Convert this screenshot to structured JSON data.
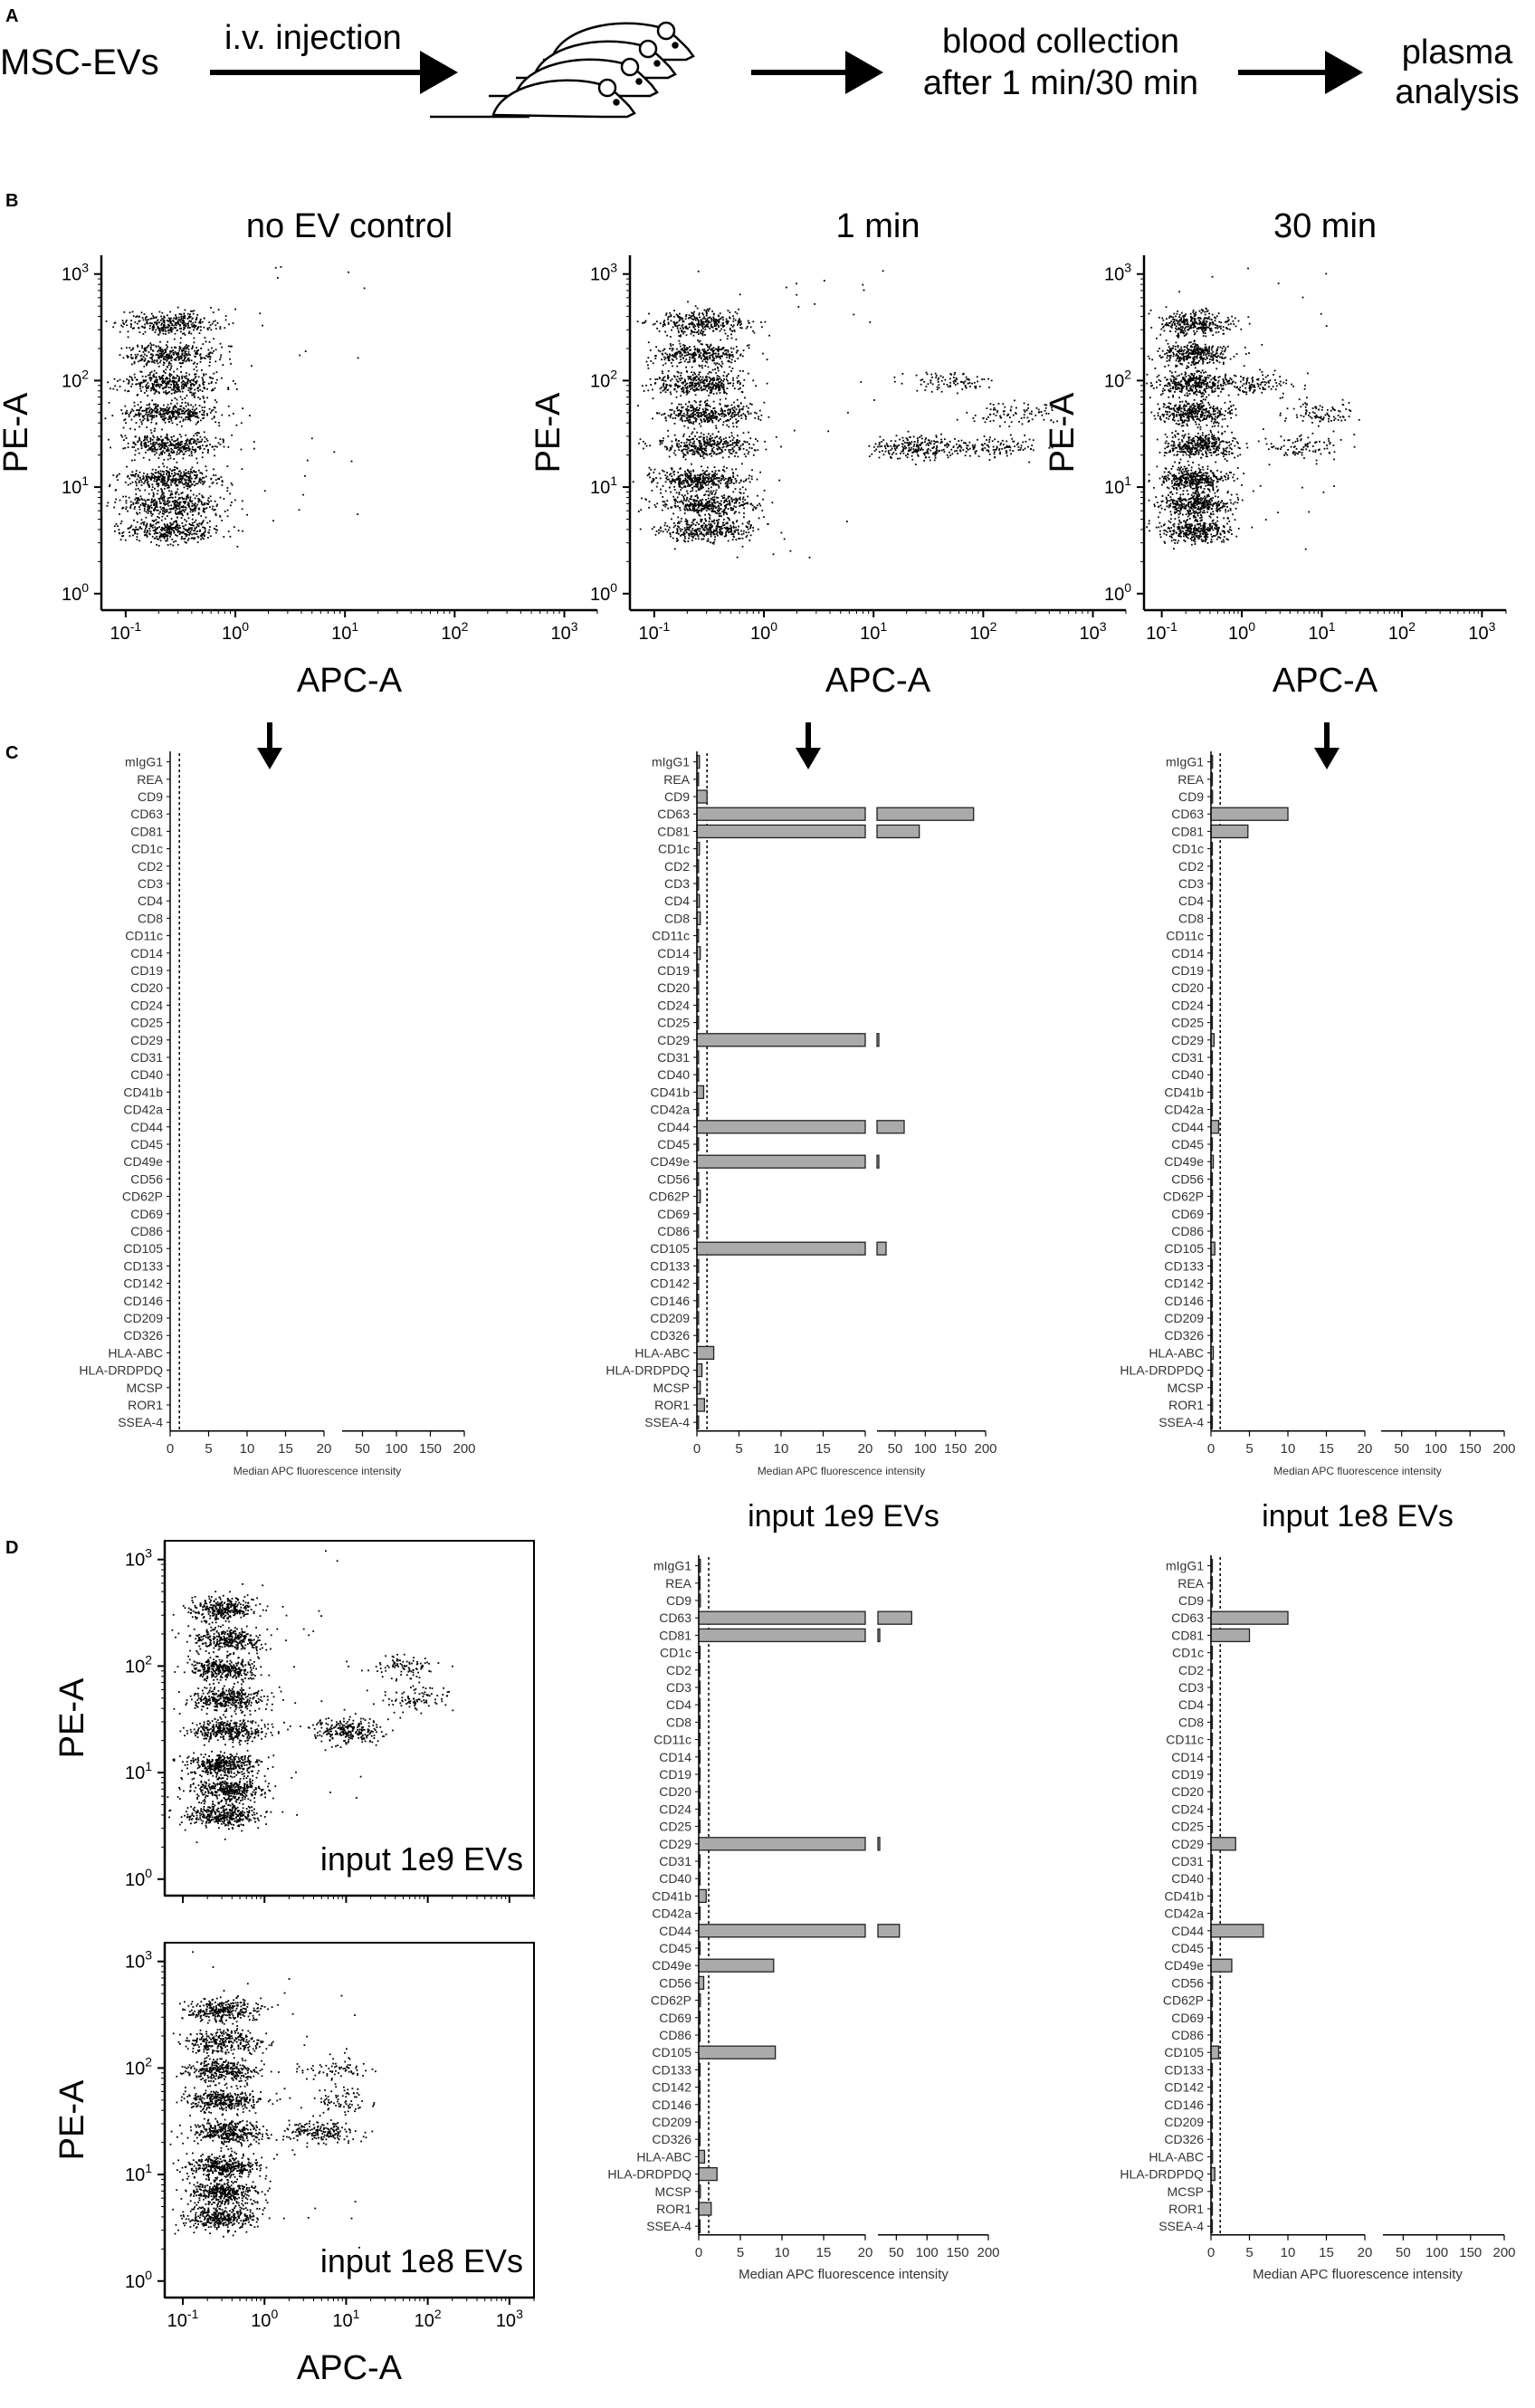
{
  "panel_labels": [
    "A",
    "B",
    "C",
    "D"
  ],
  "workflow": {
    "start": "MSC-EVs",
    "step1": "i.v. injection",
    "step2_line1": "blood collection",
    "step2_line2": "after 1 min/30 min",
    "step3_line1": "plasma",
    "step3_line2": "analysis"
  },
  "colors": {
    "bar_fill": "#aaaaaa",
    "bar_stroke": "#222222",
    "dot": "#000000"
  },
  "chart_data": [
    {
      "id": "scatter_no_ev",
      "type": "scatter",
      "title": "no EV control",
      "xlabel": "APC-A",
      "ylabel": "PE-A",
      "x_scale": "log",
      "y_scale": "log",
      "xlim": [
        0.06,
        2000
      ],
      "ylim": [
        0.7,
        1500
      ],
      "x_ticks": [
        "10-1",
        "100",
        "101",
        "102",
        "103"
      ],
      "y_ticks": [
        "100",
        "101",
        "102",
        "103"
      ],
      "populations": [
        {
          "x": 0.25,
          "y": 350,
          "n": 320
        },
        {
          "x": 0.25,
          "y": 180,
          "n": 330
        },
        {
          "x": 0.25,
          "y": 95,
          "n": 360
        },
        {
          "x": 0.25,
          "y": 50,
          "n": 360
        },
        {
          "x": 0.25,
          "y": 25,
          "n": 360
        },
        {
          "x": 0.25,
          "y": 12,
          "n": 380
        },
        {
          "x": 0.25,
          "y": 7,
          "n": 380
        },
        {
          "x": 0.25,
          "y": 4,
          "n": 360
        }
      ]
    },
    {
      "id": "scatter_1min",
      "type": "scatter",
      "title": "1 min",
      "xlabel": "APC-A",
      "ylabel": "PE-A",
      "x_scale": "log",
      "y_scale": "log",
      "xlim": [
        0.06,
        2000
      ],
      "ylim": [
        0.7,
        1500
      ],
      "x_ticks": [
        "10-1",
        "100",
        "101",
        "102",
        "103"
      ],
      "y_ticks": [
        "100",
        "101",
        "102",
        "103"
      ],
      "populations": [
        {
          "x": 0.25,
          "y": 350,
          "n": 320
        },
        {
          "x": 0.25,
          "y": 180,
          "n": 330
        },
        {
          "x": 0.25,
          "y": 95,
          "n": 360
        },
        {
          "x": 0.3,
          "y": 50,
          "n": 360
        },
        {
          "x": 0.3,
          "y": 25,
          "n": 360
        },
        {
          "x": 0.25,
          "y": 12,
          "n": 380
        },
        {
          "x": 0.3,
          "y": 7,
          "n": 380
        },
        {
          "x": 0.3,
          "y": 4,
          "n": 360
        },
        {
          "x": 50,
          "y": 100,
          "n": 90
        },
        {
          "x": 180,
          "y": 50,
          "n": 90
        },
        {
          "x": 25,
          "y": 24,
          "n": 240
        },
        {
          "x": 120,
          "y": 24,
          "n": 110
        }
      ]
    },
    {
      "id": "scatter_30min",
      "type": "scatter",
      "title": "30 min",
      "xlabel": "APC-A",
      "ylabel": "PE-A",
      "x_scale": "log",
      "y_scale": "log",
      "xlim": [
        0.06,
        2000
      ],
      "ylim": [
        0.7,
        1500
      ],
      "x_ticks": [
        "10-1",
        "100",
        "101",
        "102",
        "103"
      ],
      "y_ticks": [
        "100",
        "101",
        "102",
        "103"
      ],
      "populations": [
        {
          "x": 0.25,
          "y": 350,
          "n": 320
        },
        {
          "x": 0.25,
          "y": 180,
          "n": 330
        },
        {
          "x": 0.25,
          "y": 95,
          "n": 360
        },
        {
          "x": 0.25,
          "y": 50,
          "n": 360
        },
        {
          "x": 0.3,
          "y": 25,
          "n": 380
        },
        {
          "x": 0.25,
          "y": 12,
          "n": 380
        },
        {
          "x": 0.25,
          "y": 7,
          "n": 380
        },
        {
          "x": 0.25,
          "y": 4,
          "n": 360
        },
        {
          "x": 1.5,
          "y": 95,
          "n": 110
        },
        {
          "x": 10,
          "y": 50,
          "n": 90
        },
        {
          "x": 6,
          "y": 24,
          "n": 90
        }
      ]
    },
    {
      "id": "scatter_input_1e9",
      "type": "scatter",
      "title": "",
      "inset_label": "input 1e9 EVs",
      "xlabel": "",
      "ylabel": "PE-A",
      "x_scale": "log",
      "y_scale": "log",
      "xlim": [
        0.06,
        2000
      ],
      "ylim": [
        0.7,
        1500
      ],
      "x_ticks": [],
      "y_ticks": [
        "100",
        "101",
        "102",
        "103"
      ],
      "populations": [
        {
          "x": 0.3,
          "y": 350,
          "n": 320
        },
        {
          "x": 0.35,
          "y": 180,
          "n": 330
        },
        {
          "x": 0.3,
          "y": 95,
          "n": 340
        },
        {
          "x": 0.35,
          "y": 50,
          "n": 360
        },
        {
          "x": 0.35,
          "y": 25,
          "n": 360
        },
        {
          "x": 0.3,
          "y": 12,
          "n": 380
        },
        {
          "x": 0.35,
          "y": 7,
          "n": 380
        },
        {
          "x": 0.3,
          "y": 4,
          "n": 360
        },
        {
          "x": 50,
          "y": 100,
          "n": 90
        },
        {
          "x": 70,
          "y": 50,
          "n": 90
        },
        {
          "x": 10,
          "y": 25,
          "n": 260
        }
      ]
    },
    {
      "id": "scatter_input_1e8",
      "type": "scatter",
      "title": "",
      "inset_label": "input 1e8 EVs",
      "xlabel": "APC-A",
      "ylabel": "PE-A",
      "x_scale": "log",
      "y_scale": "log",
      "xlim": [
        0.06,
        2000
      ],
      "ylim": [
        0.7,
        1500
      ],
      "x_ticks": [
        "10-1",
        "100",
        "101",
        "102",
        "103"
      ],
      "y_ticks": [
        "100",
        "101",
        "102",
        "103"
      ],
      "populations": [
        {
          "x": 0.3,
          "y": 350,
          "n": 300
        },
        {
          "x": 0.3,
          "y": 180,
          "n": 300
        },
        {
          "x": 0.3,
          "y": 95,
          "n": 320
        },
        {
          "x": 0.3,
          "y": 50,
          "n": 340
        },
        {
          "x": 0.35,
          "y": 25,
          "n": 360
        },
        {
          "x": 0.3,
          "y": 12,
          "n": 380
        },
        {
          "x": 0.3,
          "y": 7,
          "n": 380
        },
        {
          "x": 0.3,
          "y": 4,
          "n": 360
        },
        {
          "x": 8,
          "y": 100,
          "n": 70
        },
        {
          "x": 10,
          "y": 50,
          "n": 70
        },
        {
          "x": 5,
          "y": 25,
          "n": 200
        }
      ]
    },
    {
      "id": "bars_no_ev",
      "type": "bar",
      "orientation": "horizontal",
      "title": "",
      "xlabel": "Median APC fluorescence intensity",
      "axis_segments": [
        [
          0,
          20
        ],
        [
          20,
          200
        ]
      ],
      "x_ticks_low": [
        "0",
        "5",
        "10",
        "15",
        "20"
      ],
      "x_ticks_high": [
        "50",
        "100",
        "150",
        "200"
      ],
      "reference_line": 1.2,
      "categories": [
        "mIgG1",
        "REA",
        "CD9",
        "CD63",
        "CD81",
        "CD1c",
        "CD2",
        "CD3",
        "CD4",
        "CD8",
        "CD11c",
        "CD14",
        "CD19",
        "CD20",
        "CD24",
        "CD25",
        "CD29",
        "CD31",
        "CD40",
        "CD41b",
        "CD42a",
        "CD44",
        "CD45",
        "CD49e",
        "CD56",
        "CD62P",
        "CD69",
        "CD86",
        "CD105",
        "CD133",
        "CD142",
        "CD146",
        "CD209",
        "CD326",
        "HLA-ABC",
        "HLA-DRDPDQ",
        "MCSP",
        "ROR1",
        "SSEA-4"
      ],
      "values": [
        0,
        0,
        0,
        0,
        0,
        0,
        0,
        0,
        0,
        0,
        0,
        0,
        0,
        0,
        0,
        0,
        0,
        0,
        0,
        0,
        0,
        0,
        0,
        0,
        0,
        0,
        0,
        0,
        0,
        0,
        0,
        0,
        0,
        0,
        0,
        0,
        0,
        0,
        0
      ]
    },
    {
      "id": "bars_1min",
      "type": "bar",
      "orientation": "horizontal",
      "title": "",
      "xlabel": "Median APC fluorescence intensity",
      "axis_segments": [
        [
          0,
          20
        ],
        [
          20,
          200
        ]
      ],
      "x_ticks_low": [
        "0",
        "5",
        "10",
        "15",
        "20"
      ],
      "x_ticks_high": [
        "50",
        "100",
        "150",
        "200"
      ],
      "reference_line": 1.2,
      "categories": [
        "mIgG1",
        "REA",
        "CD9",
        "CD63",
        "CD81",
        "CD1c",
        "CD2",
        "CD3",
        "CD4",
        "CD8",
        "CD11c",
        "CD14",
        "CD19",
        "CD20",
        "CD24",
        "CD25",
        "CD29",
        "CD31",
        "CD40",
        "CD41b",
        "CD42a",
        "CD44",
        "CD45",
        "CD49e",
        "CD56",
        "CD62P",
        "CD69",
        "CD86",
        "CD105",
        "CD133",
        "CD142",
        "CD146",
        "CD209",
        "CD326",
        "HLA-ABC",
        "HLA-DRDPDQ",
        "MCSP",
        "ROR1",
        "SSEA-4"
      ],
      "values": [
        0.3,
        0.2,
        1.2,
        180,
        90,
        0.3,
        0.2,
        0.2,
        0.3,
        0.4,
        0.2,
        0.4,
        0.2,
        0.2,
        0.2,
        0.2,
        23,
        0.2,
        0.2,
        0.8,
        0.2,
        65,
        0.2,
        23,
        0.2,
        0.4,
        0.2,
        0.2,
        35,
        0.2,
        0.2,
        0.2,
        0.2,
        0.2,
        2,
        0.6,
        0.4,
        0.9,
        0.2
      ]
    },
    {
      "id": "bars_30min",
      "type": "bar",
      "orientation": "horizontal",
      "title": "",
      "xlabel": "Median APC fluorescence intensity",
      "axis_segments": [
        [
          0,
          20
        ],
        [
          20,
          200
        ]
      ],
      "x_ticks_low": [
        "0",
        "5",
        "10",
        "15",
        "20"
      ],
      "x_ticks_high": [
        "50",
        "100",
        "150",
        "200"
      ],
      "reference_line": 1.2,
      "categories": [
        "mIgG1",
        "REA",
        "CD9",
        "CD63",
        "CD81",
        "CD1c",
        "CD2",
        "CD3",
        "CD4",
        "CD8",
        "CD11c",
        "CD14",
        "CD19",
        "CD20",
        "CD24",
        "CD25",
        "CD29",
        "CD31",
        "CD40",
        "CD41b",
        "CD42a",
        "CD44",
        "CD45",
        "CD49e",
        "CD56",
        "CD62P",
        "CD69",
        "CD86",
        "CD105",
        "CD133",
        "CD142",
        "CD146",
        "CD209",
        "CD326",
        "HLA-ABC",
        "HLA-DRDPDQ",
        "MCSP",
        "ROR1",
        "SSEA-4"
      ],
      "values": [
        0.2,
        0.1,
        0.2,
        10,
        4.8,
        0.1,
        0.1,
        0.1,
        0.1,
        0.1,
        0.1,
        0.1,
        0.1,
        0.1,
        0.1,
        0.1,
        0.4,
        0.1,
        0.1,
        0.2,
        0.1,
        1,
        0.1,
        0.3,
        0.1,
        0.2,
        0.1,
        0.1,
        0.5,
        0.1,
        0.1,
        0.1,
        0.1,
        0.1,
        0.3,
        0.2,
        0.1,
        0.2,
        0.1
      ]
    },
    {
      "id": "bars_input_1e9",
      "type": "bar",
      "orientation": "horizontal",
      "title": "input 1e9 EVs",
      "xlabel": "Median APC fluorescence intensity",
      "axis_segments": [
        [
          0,
          20
        ],
        [
          20,
          200
        ]
      ],
      "x_ticks_low": [
        "0",
        "5",
        "10",
        "15",
        "20"
      ],
      "x_ticks_high": [
        "50",
        "100",
        "150",
        "200"
      ],
      "reference_line": 1.2,
      "categories": [
        "mIgG1",
        "REA",
        "CD9",
        "CD63",
        "CD81",
        "CD1c",
        "CD2",
        "CD3",
        "CD4",
        "CD8",
        "CD11c",
        "CD14",
        "CD19",
        "CD20",
        "CD24",
        "CD25",
        "CD29",
        "CD31",
        "CD40",
        "CD41b",
        "CD42a",
        "CD44",
        "CD45",
        "CD49e",
        "CD56",
        "CD62P",
        "CD69",
        "CD86",
        "CD105",
        "CD133",
        "CD142",
        "CD146",
        "CD209",
        "CD326",
        "HLA-ABC",
        "HLA-DRDPDQ",
        "MCSP",
        "ROR1",
        "SSEA-4"
      ],
      "values": [
        0.2,
        0.1,
        0.2,
        75,
        23,
        0.1,
        0.1,
        0.1,
        0.1,
        0.1,
        0.1,
        0.1,
        0.1,
        0.1,
        0.1,
        0.1,
        23,
        0.1,
        0.1,
        0.9,
        0.1,
        55,
        0.1,
        9,
        0.6,
        0.2,
        0.1,
        0.1,
        9.2,
        0.1,
        0.1,
        0.1,
        0.1,
        0.1,
        0.7,
        2.2,
        0.2,
        1.5,
        0.1
      ]
    },
    {
      "id": "bars_input_1e8",
      "type": "bar",
      "orientation": "horizontal",
      "title": "input 1e8 EVs",
      "xlabel": "Median APC fluorescence intensity",
      "axis_segments": [
        [
          0,
          20
        ],
        [
          20,
          200
        ]
      ],
      "x_ticks_low": [
        "0",
        "5",
        "10",
        "15",
        "20"
      ],
      "x_ticks_high": [
        "50",
        "100",
        "150",
        "200"
      ],
      "reference_line": 1.2,
      "categories": [
        "mIgG1",
        "REA",
        "CD9",
        "CD63",
        "CD81",
        "CD1c",
        "CD2",
        "CD3",
        "CD4",
        "CD8",
        "CD11c",
        "CD14",
        "CD19",
        "CD20",
        "CD24",
        "CD25",
        "CD29",
        "CD31",
        "CD40",
        "CD41b",
        "CD42a",
        "CD44",
        "CD45",
        "CD49e",
        "CD56",
        "CD62P",
        "CD69",
        "CD86",
        "CD105",
        "CD133",
        "CD142",
        "CD146",
        "CD209",
        "CD326",
        "HLA-ABC",
        "HLA-DRDPDQ",
        "MCSP",
        "ROR1",
        "SSEA-4"
      ],
      "values": [
        0.1,
        0.1,
        0.1,
        10,
        5,
        0.1,
        0.1,
        0.1,
        0.1,
        0.1,
        0.1,
        0.1,
        0.1,
        0.1,
        0.1,
        0.1,
        3.2,
        0.1,
        0.1,
        0.1,
        0.1,
        6.8,
        0.1,
        2.7,
        0.2,
        0.1,
        0.1,
        0.1,
        1,
        0.1,
        0.1,
        0.1,
        0.1,
        0.1,
        0.2,
        0.5,
        0.1,
        0.1,
        0.1
      ]
    }
  ]
}
